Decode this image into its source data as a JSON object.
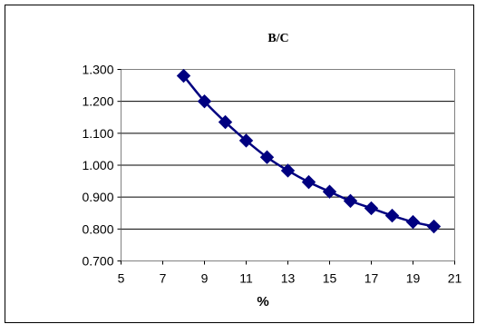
{
  "chart_data": {
    "type": "line",
    "title": "B/C",
    "xlabel": "%",
    "ylabel": "",
    "xlim": [
      5,
      21
    ],
    "ylim": [
      0.7,
      1.3
    ],
    "x_ticks": [
      "5",
      "7",
      "9",
      "11",
      "13",
      "15",
      "17",
      "19",
      "21"
    ],
    "y_ticks": [
      "0.700",
      "0.800",
      "0.900",
      "1.000",
      "1.100",
      "1.200",
      "1.300"
    ],
    "grid": "horizontal",
    "legend": "none",
    "series": [
      {
        "color": "#000080",
        "marker": "diamond",
        "x": [
          8,
          9,
          10,
          11,
          12,
          13,
          14,
          15,
          16,
          17,
          18,
          19,
          20
        ],
        "y": [
          1.28,
          1.2,
          1.135,
          1.077,
          1.025,
          0.983,
          0.947,
          0.917,
          0.888,
          0.865,
          0.842,
          0.822,
          0.808
        ]
      }
    ]
  }
}
